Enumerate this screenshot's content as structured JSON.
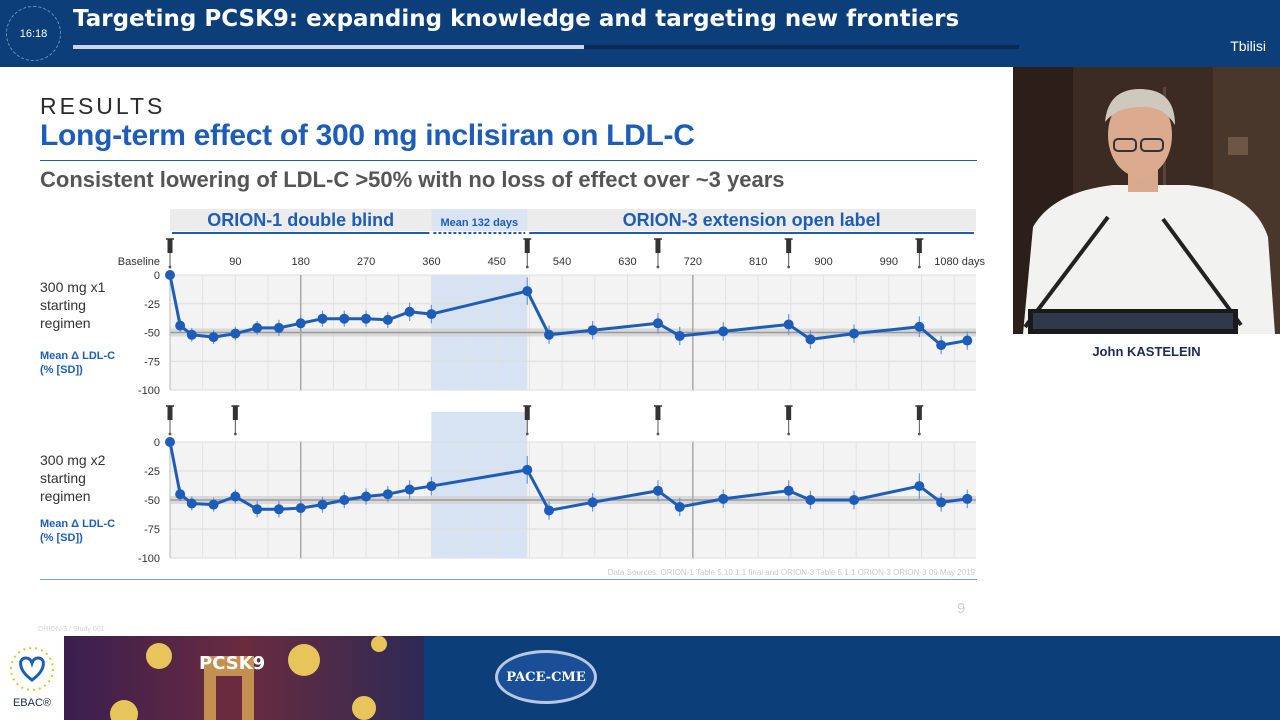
{
  "header": {
    "clock": "16:18",
    "title": "Targeting PCSK9: expanding knowledge and targeting new frontiers",
    "location": "Tbilisi",
    "progress": 0.54
  },
  "slide": {
    "kicker": "RESULTS",
    "title": "Long-term effect of 300 mg inclisiran on LDL-C",
    "subtitle": "Consistent lowering of LDL-C >50% with no loss of effect over ~3 years",
    "footnote": "Data Sources: ORION-1 Table 5.10.1.1 final and ORION-3 Table 5.1.1 ORION-3 ORION-3 09 May 2019",
    "page_number": "9",
    "code": "ORION-3 / Study 001"
  },
  "chart_data": {
    "type": "line",
    "phases": [
      {
        "label": "ORION-1 double blind",
        "x_range": [
          0,
          360
        ]
      },
      {
        "label": "Mean 132 days",
        "x_range": [
          360,
          492
        ]
      },
      {
        "label": "ORION-3 extension open label",
        "x_range": [
          492,
          1110
        ]
      }
    ],
    "x_ticks": [
      {
        "value": 0,
        "label": "Baseline"
      },
      {
        "value": 90,
        "label": "90"
      },
      {
        "value": 180,
        "label": "180"
      },
      {
        "value": 270,
        "label": "270"
      },
      {
        "value": 360,
        "label": "360"
      },
      {
        "value": 450,
        "label": "450"
      },
      {
        "value": 540,
        "label": "540"
      },
      {
        "value": 630,
        "label": "630"
      },
      {
        "value": 720,
        "label": "720"
      },
      {
        "value": 810,
        "label": "810"
      },
      {
        "value": 900,
        "label": "900"
      },
      {
        "value": 990,
        "label": "990"
      },
      {
        "value": 1080,
        "label": "1080 days"
      }
    ],
    "xlim": [
      0,
      1110
    ],
    "ylim": [
      -100,
      0
    ],
    "y_ticks": [
      "0",
      "-25",
      "-50",
      "-75",
      "-100"
    ],
    "reference_line": -50,
    "panels": [
      {
        "label_lines": [
          "300 mg x1",
          "starting",
          "regimen"
        ],
        "ylabel_lines": [
          "Mean Δ LDL-C",
          "(% [SD])"
        ],
        "injection_days": [
          0,
          492,
          672,
          852,
          1032
        ],
        "x": [
          0,
          14,
          30,
          60,
          90,
          120,
          150,
          180,
          210,
          240,
          270,
          300,
          330,
          360,
          492,
          522,
          582,
          672,
          702,
          762,
          852,
          882,
          942,
          1032,
          1062,
          1122
        ],
        "y": [
          0,
          -44,
          -52,
          -54,
          -51,
          -46,
          -46,
          -42,
          -38,
          -38,
          -38,
          -39,
          -32,
          -34,
          -14,
          -52,
          -48,
          -42,
          -53,
          -49,
          -43,
          -56,
          -51,
          -45,
          -61,
          -57
        ],
        "sd": [
          0,
          6,
          6,
          6,
          6,
          6,
          7,
          7,
          7,
          7,
          7,
          7,
          8,
          8,
          12,
          8,
          8,
          9,
          8,
          8,
          9,
          8,
          8,
          9,
          8,
          8
        ]
      },
      {
        "label_lines": [
          "300 mg x2",
          "starting",
          "regimen"
        ],
        "ylabel_lines": [
          "Mean Δ LDL-C",
          "(% [SD])"
        ],
        "injection_days": [
          0,
          90,
          492,
          672,
          852,
          1032
        ],
        "x": [
          0,
          14,
          30,
          60,
          90,
          120,
          150,
          180,
          210,
          240,
          270,
          300,
          330,
          360,
          492,
          522,
          582,
          672,
          702,
          762,
          852,
          882,
          942,
          1032,
          1062,
          1122
        ],
        "y": [
          0,
          -45,
          -53,
          -54,
          -47,
          -58,
          -58,
          -57,
          -54,
          -50,
          -47,
          -45,
          -41,
          -38,
          -24,
          -59,
          -52,
          -42,
          -56,
          -49,
          -42,
          -50,
          -50,
          -38,
          -52,
          -49
        ],
        "sd": [
          0,
          6,
          6,
          6,
          6,
          7,
          7,
          7,
          7,
          7,
          7,
          7,
          8,
          8,
          12,
          8,
          8,
          9,
          8,
          8,
          9,
          8,
          8,
          11,
          8,
          8
        ]
      }
    ]
  },
  "speaker": {
    "name": "John KASTELEIN"
  },
  "banner": {
    "ebac": "EBAC®",
    "pace": "PACE-CME",
    "promo_text": "PCSK9"
  },
  "colors": {
    "brand_blue": "#0c3e7a",
    "series_blue": "#1d5db8"
  }
}
